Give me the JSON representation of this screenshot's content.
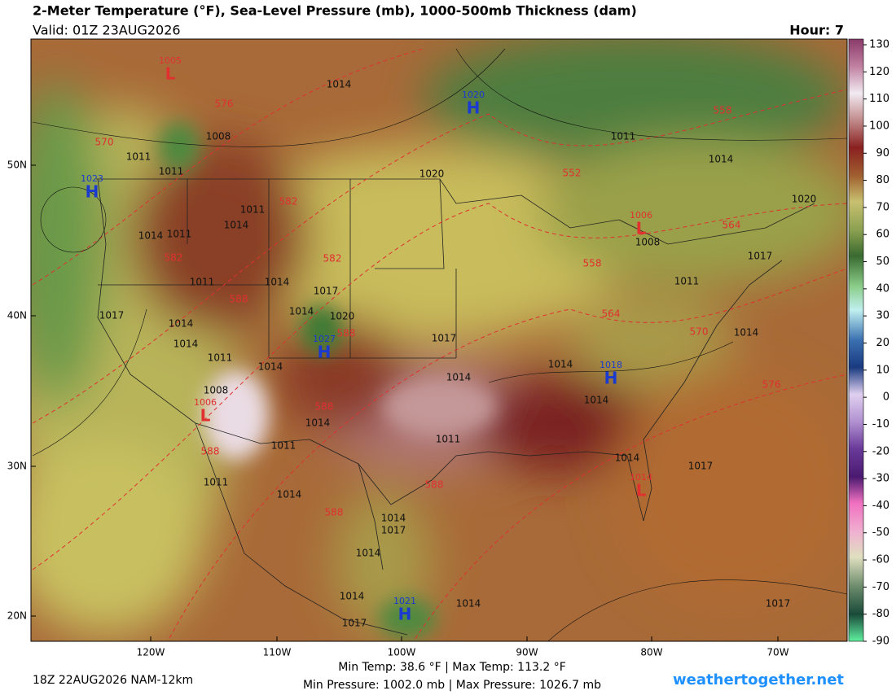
{
  "header": {
    "title": "2-Meter Temperature (°F), Sea-Level Pressure (mb), 1000-500mb Thickness (dam)",
    "valid": "Valid: 01Z 23AUG2026",
    "hour": "Hour: 7"
  },
  "map": {
    "lat_labels": [
      "50N",
      "40N",
      "30N",
      "20N"
    ],
    "lon_labels": [
      "120W",
      "110W",
      "100W",
      "90W",
      "80W",
      "70W"
    ],
    "pressure_centers": [
      {
        "symbol": "H",
        "value": "1020"
      },
      {
        "symbol": "H",
        "value": "1023"
      },
      {
        "symbol": "H",
        "value": "1027"
      },
      {
        "symbol": "H",
        "value": "1018"
      },
      {
        "symbol": "H",
        "value": "1021"
      },
      {
        "symbol": "L",
        "value": "1005"
      },
      {
        "symbol": "L",
        "value": "1006"
      },
      {
        "symbol": "L",
        "value": "1006"
      },
      {
        "symbol": "L",
        "value": "1014"
      }
    ],
    "isobar_labels": [
      "1014",
      "1008",
      "1011",
      "1011",
      "1020",
      "1011",
      "1014",
      "1020",
      "1011",
      "1014",
      "1014",
      "1011",
      "1017",
      "1011",
      "1014",
      "1017",
      "1011",
      "1017",
      "1014",
      "1020",
      "1014",
      "1017",
      "1014",
      "1014",
      "1011",
      "1014",
      "1014",
      "1014",
      "1008",
      "1014",
      "1014",
      "1011",
      "1011",
      "1014",
      "1017",
      "1011",
      "1014",
      "1014",
      "1017",
      "1014",
      "1014",
      "1014",
      "1017",
      "1017",
      "1008"
    ],
    "thickness_labels": [
      "576",
      "570",
      "552",
      "558",
      "582",
      "564",
      "582",
      "582",
      "558",
      "588",
      "564",
      "588",
      "570",
      "576",
      "588",
      "588",
      "588",
      "588"
    ]
  },
  "colorbar": {
    "ticks": [
      130,
      120,
      110,
      100,
      90,
      80,
      70,
      60,
      50,
      40,
      30,
      20,
      10,
      0,
      -10,
      -20,
      -30,
      -40,
      -50,
      -60,
      -70,
      -80,
      -90
    ]
  },
  "footer": {
    "run": "18Z 22AUG2026 NAM-12km",
    "temp_range": "Min Temp:  38.6 °F | Max Temp: 113.2 °F",
    "pressure_range": "Min Pressure: 1002.0 mb | Max Pressure: 1026.7 mb",
    "site": "weathertogether.net"
  }
}
